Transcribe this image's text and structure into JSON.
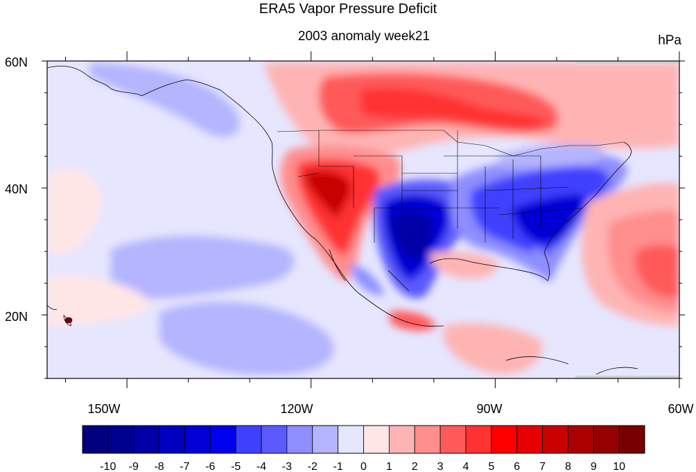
{
  "title": "ERA5 Vapor Pressure Deficit",
  "subtitle": "2003 anomaly week21",
  "units": "hPa",
  "map": {
    "lon_range": [
      -163,
      -60
    ],
    "lat_range": [
      10,
      60
    ],
    "lat_tick_labels": [
      "60N",
      "40N",
      "20N"
    ],
    "lon_tick_labels": [
      "150W",
      "120W",
      "90W",
      "60W"
    ],
    "projection": "cylindrical equidistant",
    "coastlines": true,
    "us_state_boundaries": true
  },
  "colorbar": {
    "orientation": "horizontal",
    "labels": [
      "-10",
      "-9",
      "-8",
      "-7",
      "-6",
      "-5",
      "-4",
      "-3",
      "-2",
      "-1",
      "0",
      "1",
      "2",
      "3",
      "4",
      "5",
      "6",
      "7",
      "8",
      "9",
      "10"
    ],
    "colors": [
      "#000080",
      "#00008e",
      "#0000a6",
      "#0000be",
      "#0000d6",
      "#0000ee",
      "#4040ff",
      "#5a5aff",
      "#8e8eff",
      "#b4b4ff",
      "#e6e6ff",
      "#ffe6e6",
      "#ffb4b4",
      "#ff8e8e",
      "#ff5a5a",
      "#ff3232",
      "#ff0000",
      "#e60000",
      "#c80000",
      "#aa0000",
      "#960000",
      "#780000"
    ]
  },
  "features": [
    {
      "name": "western-us-positive-anomaly",
      "value_hpa": 8
    },
    {
      "name": "texas-negative-anomaly",
      "value_hpa": -9
    },
    {
      "name": "eastern-us-negative-anomaly",
      "value_hpa": -7
    },
    {
      "name": "canada-positive-anomaly",
      "value_hpa": 4
    },
    {
      "name": "atlantic-positive-anomaly",
      "value_hpa": 3
    },
    {
      "name": "pacific-negative-anomaly",
      "value_hpa": -2
    }
  ]
}
